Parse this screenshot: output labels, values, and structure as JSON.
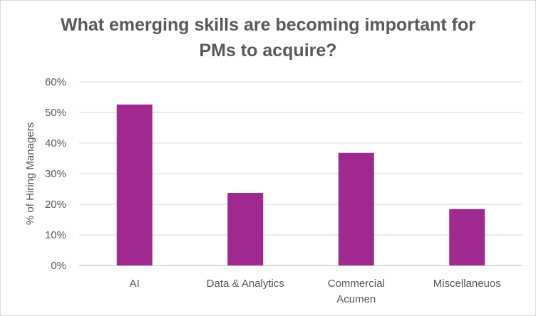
{
  "chart_data": {
    "type": "bar",
    "title_lines": [
      "What emerging skills are becoming important for",
      "PMs to acquire?"
    ],
    "ylabel": "% of Hiring Managers",
    "xlabel": "",
    "categories": [
      "AI",
      "Data & Analytics",
      "Commercial Acumen",
      "Miscellaneuos"
    ],
    "category_label_lines": [
      [
        "AI"
      ],
      [
        "Data & Analytics"
      ],
      [
        "Commercial",
        "Acumen"
      ],
      [
        "Miscellaneuos"
      ]
    ],
    "values": [
      0.526,
      0.237,
      0.368,
      0.184
    ],
    "ylim": [
      0,
      0.6
    ],
    "yticks": [
      0,
      0.1,
      0.2,
      0.3,
      0.4,
      0.5,
      0.6
    ],
    "ytick_labels": [
      "0%",
      "10%",
      "20%",
      "30%",
      "40%",
      "50%",
      "60%"
    ],
    "grid": true,
    "legend": "none",
    "bar_color": "#A0298F",
    "grid_color": "#d9d9d9",
    "axis_color": "#bfbfbf"
  }
}
